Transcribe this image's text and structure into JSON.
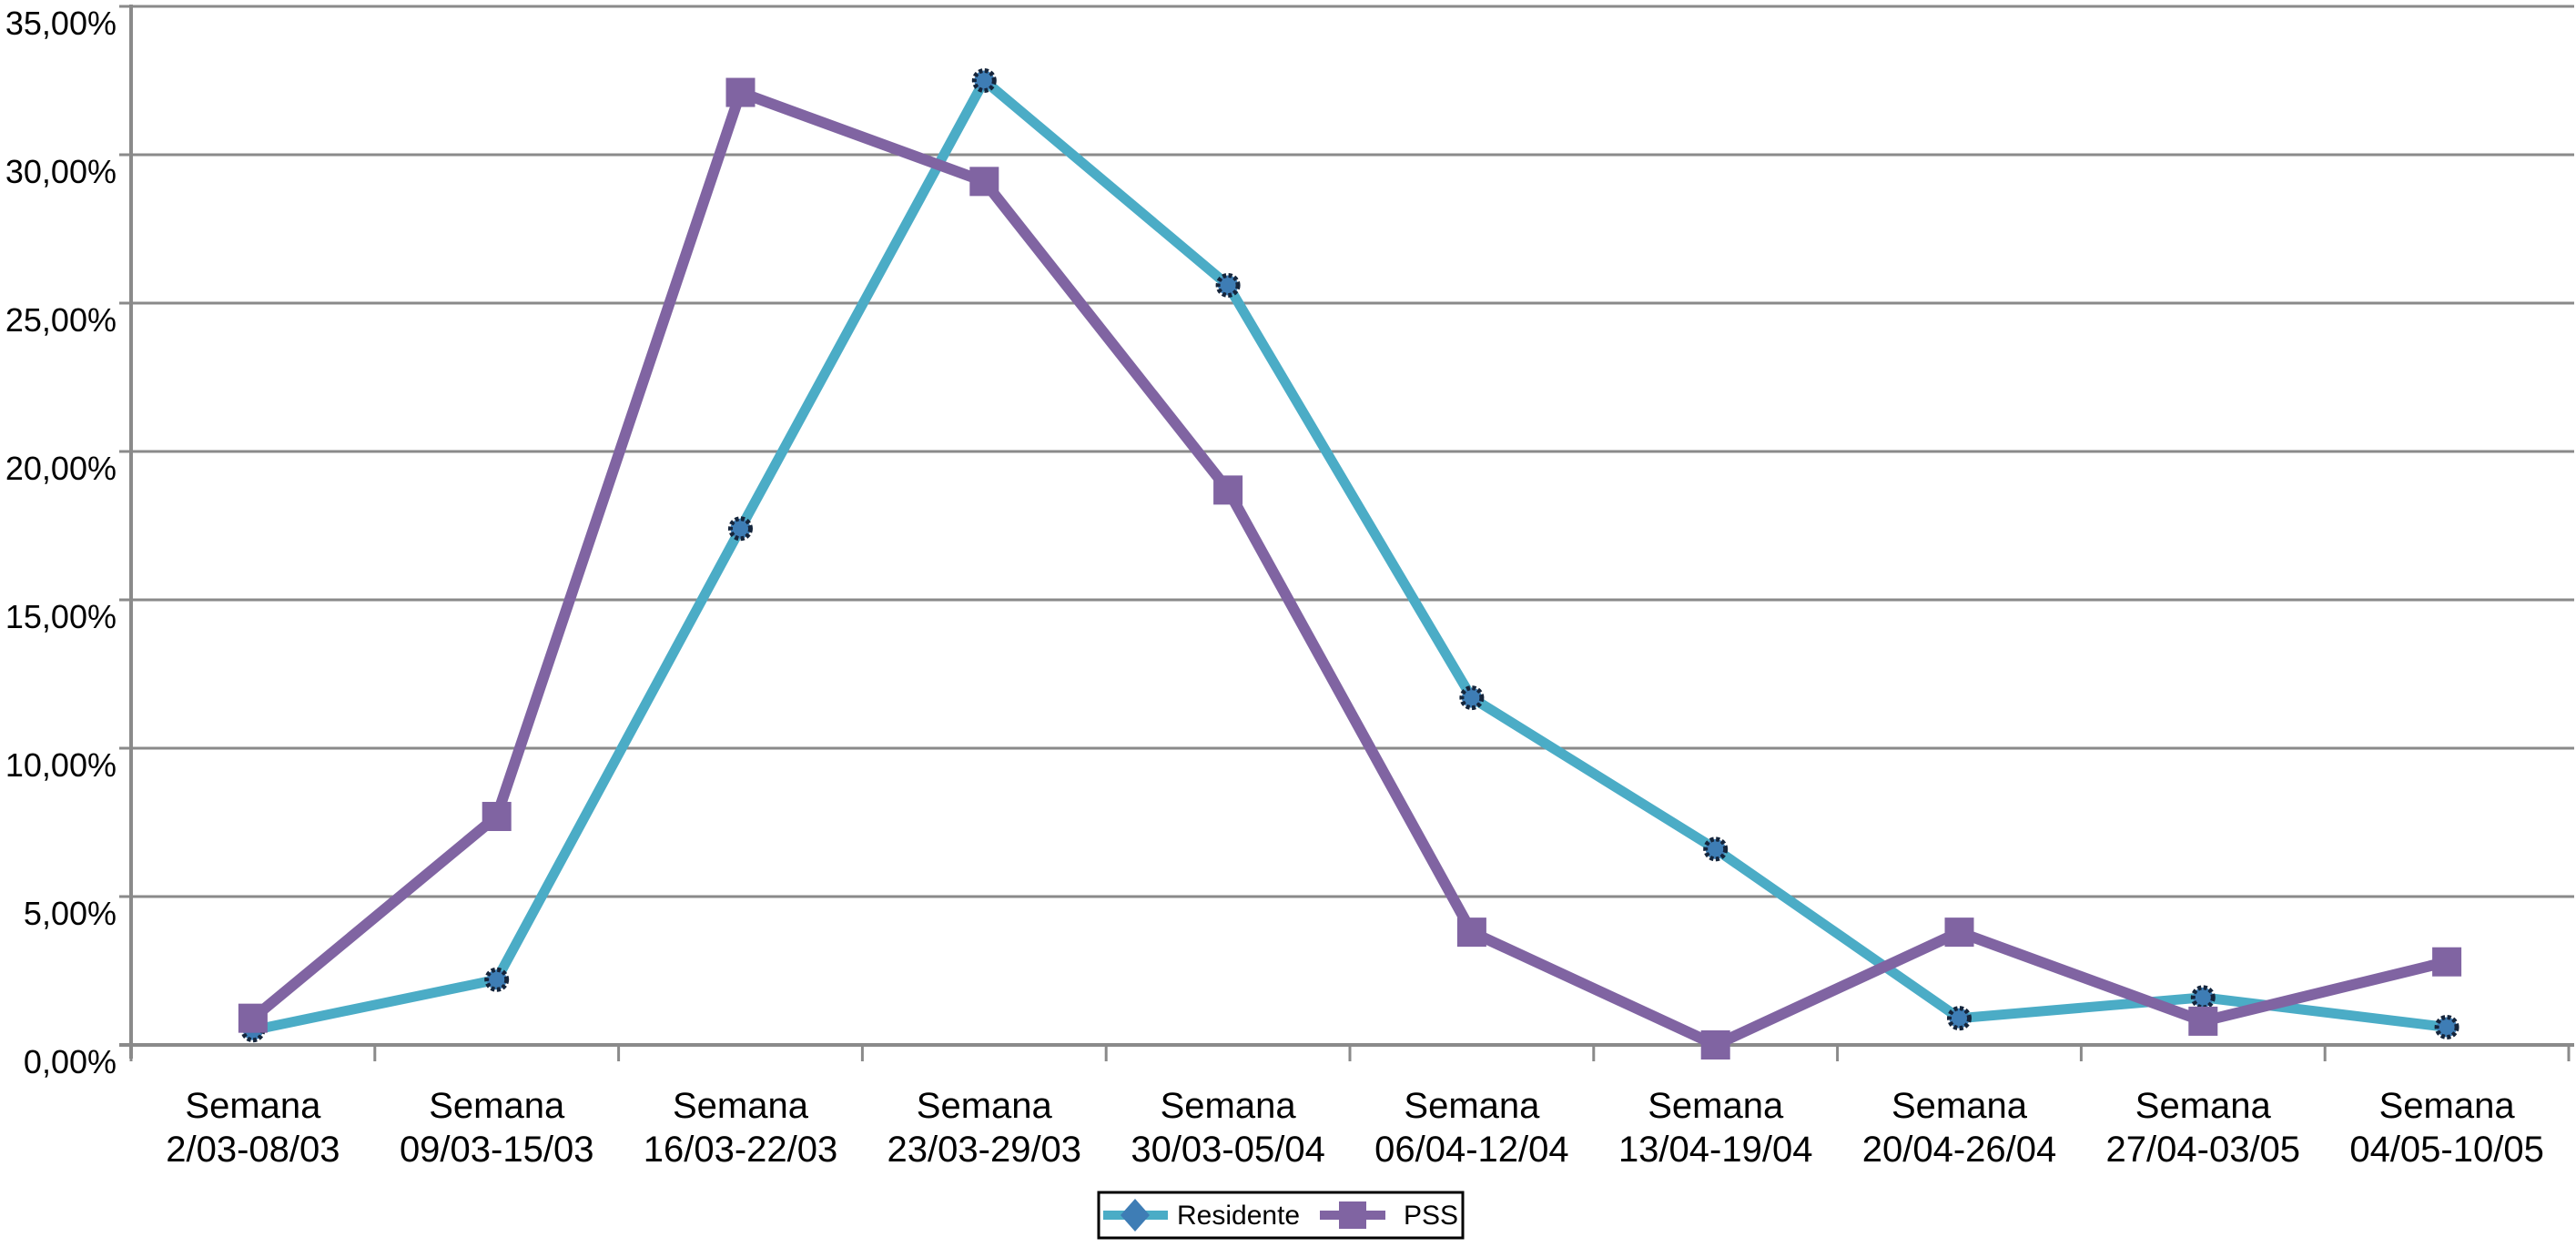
{
  "chart_data": {
    "type": "line",
    "title": "",
    "xlabel": "",
    "ylabel": "",
    "grid": true,
    "legend_position": "bottom-center",
    "background": "#FFFFFF",
    "colors": {
      "gridline": "#8A8A8A",
      "axis": "#8A8A8A",
      "text": "#000000"
    },
    "y_axis": {
      "min": 0,
      "max": 35,
      "step": 5,
      "ticks": [
        "0,00%",
        "5,00%",
        "10,00%",
        "15,00%",
        "20,00%",
        "25,00%",
        "30,00%",
        "35,00%"
      ]
    },
    "categories": [
      {
        "top": "Semana",
        "bottom": "2/03-08/03"
      },
      {
        "top": "Semana",
        "bottom": "09/03-15/03"
      },
      {
        "top": "Semana",
        "bottom": "16/03-22/03"
      },
      {
        "top": "Semana",
        "bottom": "23/03-29/03"
      },
      {
        "top": "Semana",
        "bottom": "30/03-05/04"
      },
      {
        "top": "Semana",
        "bottom": "06/04-12/04"
      },
      {
        "top": "Semana",
        "bottom": "13/04-19/04"
      },
      {
        "top": "Semana",
        "bottom": "20/04-26/04"
      },
      {
        "top": "Semana",
        "bottom": "27/04-03/05"
      },
      {
        "top": "Semana",
        "bottom": "04/05-10/05"
      }
    ],
    "series": [
      {
        "name": "Residente",
        "values": [
          0.5,
          2.2,
          17.4,
          32.5,
          25.6,
          11.7,
          6.6,
          0.9,
          1.6,
          0.6
        ],
        "line_color": "#4BACC6",
        "line_width": 11,
        "chart_marker": "circle",
        "legend_marker": "diamond",
        "marker_fill": "#3E7DB5",
        "marker_stroke": "#15253B"
      },
      {
        "name": "PSS",
        "values": [
          0.9,
          7.7,
          32.1,
          29.1,
          18.7,
          3.8,
          0.0,
          3.8,
          0.8,
          2.8
        ],
        "line_color": "#8064A2",
        "line_width": 12,
        "chart_marker": "square",
        "legend_marker": "square",
        "marker_fill": "#8064A2",
        "marker_stroke": "#8064A2"
      }
    ]
  }
}
